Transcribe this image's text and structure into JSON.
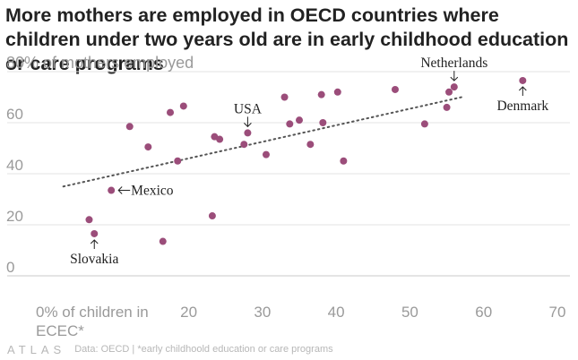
{
  "title": "More mothers are employed in OECD countries where children under two years old are in early childhood education or care programs",
  "source": "Data: OECD | *early childhoold education or care programs",
  "logo": "ATLAS",
  "colors": {
    "point": "#9b4d7a",
    "trend": "#555555",
    "text": "#222222",
    "axis": "#9a9a9a"
  },
  "chart_data": {
    "type": "scatter",
    "title": "More mothers are employed in OECD countries where children under two years old are in early childhood education or care programs",
    "xlabel": "% of children in ECEC*",
    "ylabel": "% of mothers employed",
    "xlim": [
      0,
      70
    ],
    "ylim": [
      0,
      80
    ],
    "x_ticks": [
      0,
      10,
      20,
      30,
      40,
      50,
      60,
      70
    ],
    "y_ticks": [
      0,
      20,
      40,
      60,
      80
    ],
    "x_tick_labels": [
      "0% of children in ECEC*",
      "",
      "20",
      "30",
      "40",
      "50",
      "60",
      "70"
    ],
    "y_tick_labels": [
      "0",
      "20",
      "40",
      "60",
      "80% of mothers employed"
    ],
    "points": [
      {
        "x": 6.5,
        "y": 22
      },
      {
        "x": 7.2,
        "y": 16.5,
        "label": "Slovakia",
        "label_pos": "below"
      },
      {
        "x": 9.5,
        "y": 33.5,
        "label": "Mexico",
        "label_pos": "right"
      },
      {
        "x": 12,
        "y": 58.5
      },
      {
        "x": 14.5,
        "y": 50.5
      },
      {
        "x": 16.5,
        "y": 13.5
      },
      {
        "x": 17.5,
        "y": 64
      },
      {
        "x": 18.5,
        "y": 45
      },
      {
        "x": 19.3,
        "y": 66.5
      },
      {
        "x": 23.2,
        "y": 23.5
      },
      {
        "x": 23.5,
        "y": 54.5
      },
      {
        "x": 24.2,
        "y": 53.5
      },
      {
        "x": 27.5,
        "y": 51.5
      },
      {
        "x": 28,
        "y": 56,
        "label": "USA",
        "label_pos": "above"
      },
      {
        "x": 30.5,
        "y": 47.5
      },
      {
        "x": 33,
        "y": 70
      },
      {
        "x": 33.7,
        "y": 59.5
      },
      {
        "x": 35,
        "y": 61
      },
      {
        "x": 36.5,
        "y": 51.5
      },
      {
        "x": 38,
        "y": 71
      },
      {
        "x": 38.2,
        "y": 60
      },
      {
        "x": 40.2,
        "y": 72
      },
      {
        "x": 41,
        "y": 45
      },
      {
        "x": 48,
        "y": 73
      },
      {
        "x": 52,
        "y": 59.5
      },
      {
        "x": 55,
        "y": 66
      },
      {
        "x": 55.3,
        "y": 72
      },
      {
        "x": 56,
        "y": 74,
        "label": "Netherlands",
        "label_pos": "above"
      },
      {
        "x": 65.3,
        "y": 76.5,
        "label": "Denmark",
        "label_pos": "below"
      }
    ],
    "trendline": {
      "x": [
        3,
        57
      ],
      "y": [
        35,
        70
      ],
      "style": "dotted"
    },
    "grid": true
  }
}
